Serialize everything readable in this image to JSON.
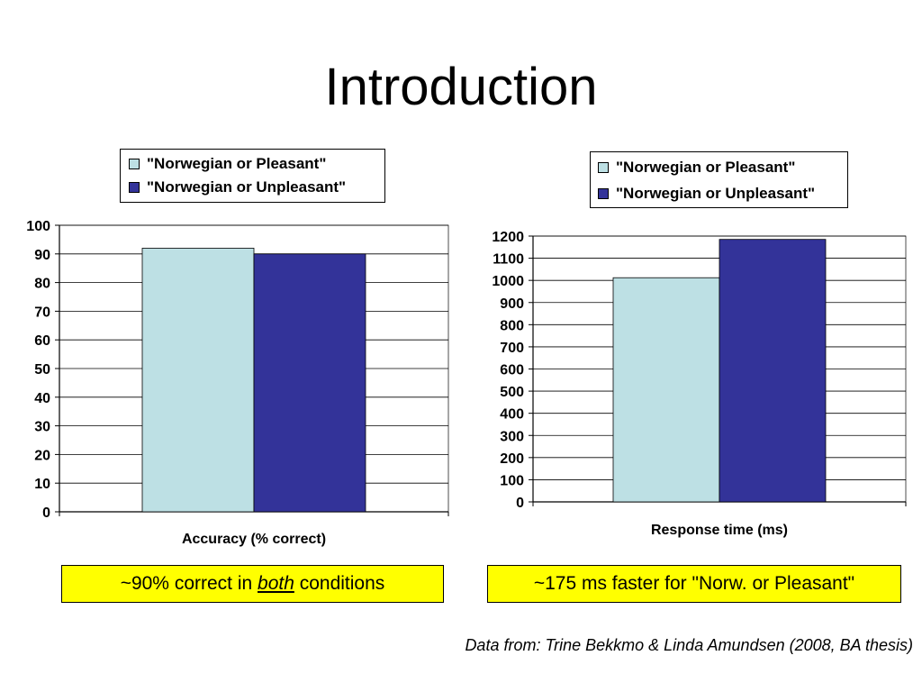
{
  "slide": {
    "title": "Introduction",
    "source_note": "Data from: Trine Bekkmo & Linda Amundsen (2008, BA thesis)"
  },
  "notes": {
    "accuracy": {
      "before": "~90% correct in ",
      "emph": "both",
      "after": " conditions"
    },
    "response": {
      "text": "~175 ms faster for \"Norw. or Pleasant\""
    }
  },
  "chart_data": [
    {
      "type": "bar",
      "xlabel": "Accuracy (% correct)",
      "ylabel": "",
      "ylim": [
        0,
        100
      ],
      "yticks": [
        0,
        10,
        20,
        30,
        40,
        50,
        60,
        70,
        80,
        90,
        100
      ],
      "grid": true,
      "legend_position": "top",
      "series": [
        {
          "name": "\"Norwegian or Pleasant\"",
          "values": [
            92
          ],
          "color": "#bde0e4"
        },
        {
          "name": "\"Norwegian or Unpleasant\"",
          "values": [
            90
          ],
          "color": "#333399"
        }
      ]
    },
    {
      "type": "bar",
      "xlabel": "Response time (ms)",
      "ylabel": "",
      "ylim": [
        0,
        1200
      ],
      "yticks": [
        0,
        100,
        200,
        300,
        400,
        500,
        600,
        700,
        800,
        900,
        1000,
        1100,
        1200
      ],
      "grid": true,
      "legend_position": "top",
      "series": [
        {
          "name": "\"Norwegian or Pleasant\"",
          "values": [
            1012
          ],
          "color": "#bde0e4"
        },
        {
          "name": "\"Norwegian or Unpleasant\"",
          "values": [
            1185
          ],
          "color": "#333399"
        }
      ]
    }
  ]
}
